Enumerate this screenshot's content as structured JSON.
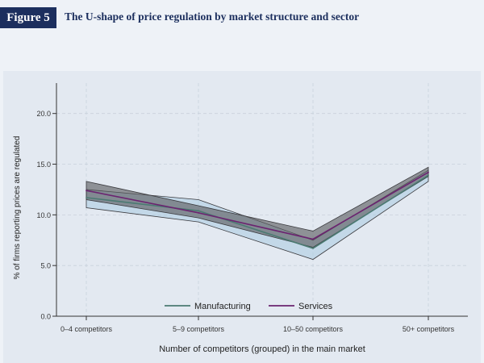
{
  "figure": {
    "label": "Figure 5",
    "title": "The U-shape of price regulation by market structure and sector"
  },
  "colors": {
    "header": "#1c2f5e",
    "manufacturing_line": "#4b7a72",
    "manufacturing_band": "#a9cbe0",
    "services_line": "#6b2470",
    "services_band": "#5a5a5e"
  },
  "chart_data": {
    "type": "line",
    "categories": [
      "0–4 competitors",
      "5–9 competitors",
      "10–50 competitors",
      "50+ competitors"
    ],
    "series": [
      {
        "name": "Manufacturing",
        "values": [
          11.7,
          10.4,
          6.7,
          13.9
        ],
        "ci_low": [
          10.7,
          9.3,
          5.6,
          13.3
        ],
        "ci_high": [
          12.5,
          11.5,
          7.5,
          14.4
        ]
      },
      {
        "name": "Services",
        "values": [
          12.4,
          10.2,
          7.6,
          14.2
        ],
        "ci_low": [
          11.5,
          9.7,
          6.8,
          13.8
        ],
        "ci_high": [
          13.3,
          10.9,
          8.4,
          14.7
        ]
      }
    ],
    "xlabel": "Number of competitors (grouped) in the main market",
    "ylabel": "% of firms reporting prices are regulated",
    "ylim": [
      0,
      23
    ],
    "yticks": [
      "0.0",
      "5.0",
      "10.0",
      "15.0",
      "20.0"
    ],
    "grid": true,
    "legend_position": "bottom-center"
  }
}
